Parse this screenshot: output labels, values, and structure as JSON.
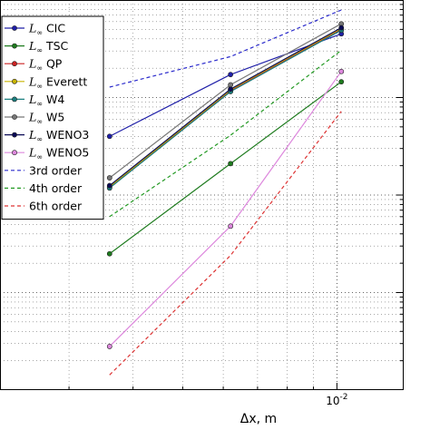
{
  "chart_data": {
    "type": "line",
    "xlabel": "Δx, m",
    "ylabel": "",
    "title": "",
    "x_scale": "log",
    "y_scale": "log",
    "grid": true,
    "legend_position": "top-left",
    "x_tick_labels": [
      {
        "value": 0.01,
        "base": "10",
        "exponent": "-2"
      }
    ],
    "xlim": [
      0.0022,
      0.0135
    ],
    "ylim": [
      1e-05,
      0.1
    ],
    "legend_prefix": "L",
    "legend_subscript": "∞",
    "x": [
      0.0036,
      0.0062,
      0.0102
    ],
    "series": [
      {
        "name": "CIC",
        "color": "#1f1fa8",
        "style": "solid",
        "marker": true,
        "values": [
          0.004,
          0.0172,
          0.045
        ]
      },
      {
        "name": "TSC",
        "color": "#1e7b1e",
        "style": "solid",
        "marker": true,
        "values": [
          0.00025,
          0.0021,
          0.0145
        ]
      },
      {
        "name": "QP",
        "color": "#cc2222",
        "style": "solid",
        "marker": true,
        "values": [
          0.0012,
          0.0118,
          0.05
        ]
      },
      {
        "name": "Everett",
        "color": "#c8b400",
        "style": "solid",
        "marker": true,
        "values": [
          0.00122,
          0.012,
          0.051
        ]
      },
      {
        "name": "W4",
        "color": "#1a7f7f",
        "style": "solid",
        "marker": true,
        "values": [
          0.00118,
          0.0115,
          0.049
        ]
      },
      {
        "name": "W5",
        "color": "#777777",
        "style": "solid",
        "marker": true,
        "values": [
          0.0015,
          0.0135,
          0.057
        ]
      },
      {
        "name": "WENO3",
        "color": "#0a0a55",
        "style": "solid",
        "marker": true,
        "values": [
          0.00125,
          0.0122,
          0.052
        ]
      },
      {
        "name": "WENO5",
        "color": "#dd88dd",
        "style": "solid",
        "marker": true,
        "values": [
          2.8e-05,
          0.00048,
          0.0185
        ]
      },
      {
        "name": "3rd order",
        "color": "#2a2acc",
        "style": "dashed",
        "marker": false,
        "values": [
          0.0128,
          0.0263,
          0.079
        ]
      },
      {
        "name": "4th order",
        "color": "#229922",
        "style": "dashed",
        "marker": false,
        "values": [
          0.0006,
          0.0041,
          0.0305
        ]
      },
      {
        "name": "6th order",
        "color": "#dd3333",
        "style": "dashed",
        "marker": false,
        "values": [
          1.43e-05,
          0.00024,
          0.0072
        ]
      }
    ]
  }
}
